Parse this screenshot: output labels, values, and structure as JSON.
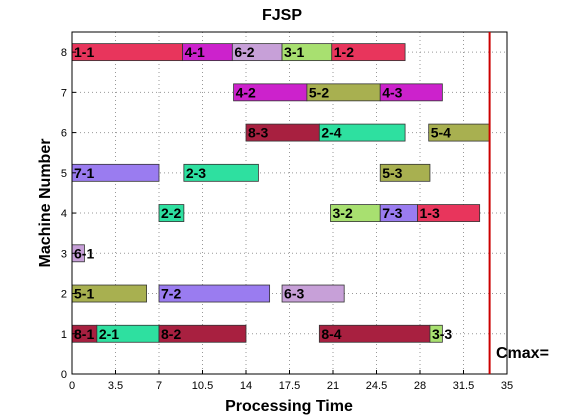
{
  "chart_data": {
    "type": "gantt",
    "title": "FJSP",
    "xlabel": "Processing Time",
    "ylabel": "Machine Number",
    "xlim": [
      0,
      35
    ],
    "ylim": [
      0,
      8.5
    ],
    "xticks": [
      "0",
      "3.5",
      "7",
      "10.5",
      "14",
      "17.5",
      "21",
      "24.5",
      "28",
      "31.5",
      "35"
    ],
    "yticks": [
      "0",
      "1",
      "2",
      "3",
      "4",
      "5",
      "6",
      "7",
      "8"
    ],
    "grid": true,
    "cmax": {
      "label": "Cmax=",
      "value": 33.6,
      "color": "#cc0000"
    },
    "colors": {
      "job1": "#e8355c",
      "job2": "#2ee0a0",
      "job3": "#a8e070",
      "job4": "#cc22cc",
      "job5": "#a8b050",
      "job6": "#c7a0d8",
      "job7": "#9a7cf0",
      "job8": "#a82040"
    },
    "operations": [
      {
        "machine": 8,
        "label": "1-1",
        "job": "job1",
        "start": 0.0,
        "end": 8.9
      },
      {
        "machine": 8,
        "label": "4-1",
        "job": "job4",
        "start": 8.9,
        "end": 12.9
      },
      {
        "machine": 8,
        "label": "6-2",
        "job": "job6",
        "start": 12.9,
        "end": 16.9
      },
      {
        "machine": 8,
        "label": "3-1",
        "job": "job3",
        "start": 16.9,
        "end": 20.9
      },
      {
        "machine": 8,
        "label": "1-2",
        "job": "job1",
        "start": 20.9,
        "end": 26.8
      },
      {
        "machine": 7,
        "label": "4-2",
        "job": "job4",
        "start": 13.0,
        "end": 18.9
      },
      {
        "machine": 7,
        "label": "5-2",
        "job": "job5",
        "start": 18.9,
        "end": 24.8
      },
      {
        "machine": 7,
        "label": "4-3",
        "job": "job4",
        "start": 24.8,
        "end": 29.8
      },
      {
        "machine": 6,
        "label": "8-3",
        "job": "job8",
        "start": 14.0,
        "end": 19.9
      },
      {
        "machine": 6,
        "label": "2-4",
        "job": "job2",
        "start": 19.9,
        "end": 26.8
      },
      {
        "machine": 6,
        "label": "5-4",
        "job": "job5",
        "start": 28.7,
        "end": 33.6
      },
      {
        "machine": 5,
        "label": "7-1",
        "job": "job7",
        "start": 0.0,
        "end": 7.0
      },
      {
        "machine": 5,
        "label": "2-3",
        "job": "job2",
        "start": 9.0,
        "end": 15.0
      },
      {
        "machine": 5,
        "label": "5-3",
        "job": "job5",
        "start": 24.8,
        "end": 28.8
      },
      {
        "machine": 4,
        "label": "2-2",
        "job": "job2",
        "start": 7.0,
        "end": 9.0
      },
      {
        "machine": 4,
        "label": "3-2",
        "job": "job3",
        "start": 20.8,
        "end": 24.8
      },
      {
        "machine": 4,
        "label": "7-3",
        "job": "job7",
        "start": 24.8,
        "end": 27.8
      },
      {
        "machine": 4,
        "label": "1-3",
        "job": "job1",
        "start": 27.8,
        "end": 32.8
      },
      {
        "machine": 3,
        "label": "6-1",
        "job": "job6",
        "start": 0.0,
        "end": 1.0
      },
      {
        "machine": 2,
        "label": "5-1",
        "job": "job5",
        "start": 0.0,
        "end": 6.0
      },
      {
        "machine": 2,
        "label": "7-2",
        "job": "job7",
        "start": 7.0,
        "end": 15.9
      },
      {
        "machine": 2,
        "label": "6-3",
        "job": "job6",
        "start": 16.9,
        "end": 21.9
      },
      {
        "machine": 1,
        "label": "8-1",
        "job": "job8",
        "start": 0.0,
        "end": 2.0
      },
      {
        "machine": 1,
        "label": "2-1",
        "job": "job2",
        "start": 2.0,
        "end": 7.0
      },
      {
        "machine": 1,
        "label": "8-2",
        "job": "job8",
        "start": 7.0,
        "end": 14.0
      },
      {
        "machine": 1,
        "label": "8-4",
        "job": "job8",
        "start": 19.9,
        "end": 28.8
      },
      {
        "machine": 1,
        "label": "3-3",
        "job": "job3",
        "start": 28.8,
        "end": 29.8
      }
    ]
  }
}
